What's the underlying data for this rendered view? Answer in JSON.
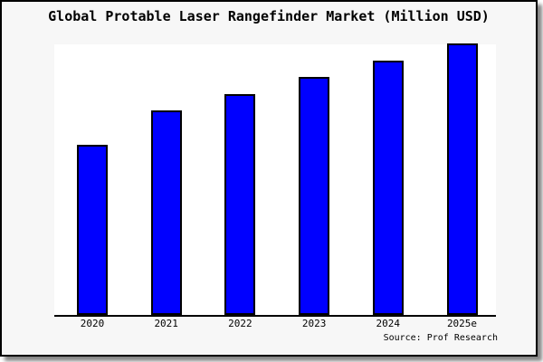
{
  "page": {
    "background": "#ffffff",
    "card_background": "#f7f7f7",
    "frame_color": "#000000",
    "shadow_color": "#8f8f8f"
  },
  "chart_data": {
    "type": "bar",
    "title": "Global Protable Laser Rangefinder Market (Million USD)",
    "categories": [
      "2020",
      "2021",
      "2022",
      "2023",
      "2024",
      "2025e"
    ],
    "values": [
      62.6,
      75.3,
      81.3,
      87.6,
      93.7,
      100
    ],
    "values_note": "relative bar heights as percent of tallest bar (2025e); no numeric y-axis labels are shown in the image",
    "xlabel": "",
    "ylabel": "",
    "ylim": [
      0,
      100
    ],
    "y_axis_ticks_shown": false,
    "grid": false,
    "legend": false,
    "bar_color": "#0000ff",
    "bar_edge_color": "#000000",
    "plot_background": "#ffffff",
    "axis_line_color": "#000000"
  },
  "footer": {
    "source_label": "Source: Prof Research"
  }
}
